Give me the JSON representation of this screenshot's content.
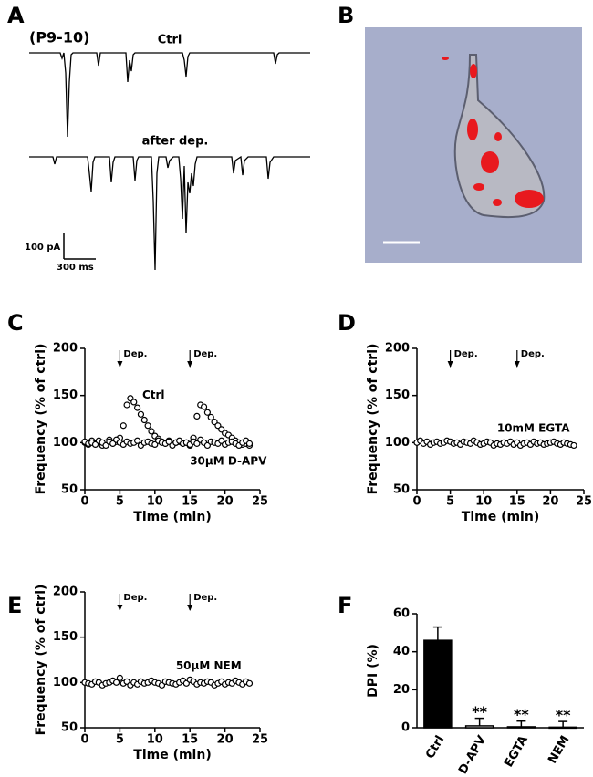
{
  "chart_data": [
    {
      "type": "trace",
      "label": "A",
      "subtitle": "(P9-10)",
      "annotations": [
        "Ctrl",
        "after dep.",
        "100 pA",
        "300 ms"
      ]
    },
    {
      "type": "image",
      "label": "B"
    },
    {
      "type": "scatter",
      "label": "C",
      "xlabel": "Time (min)",
      "ylabel": "Frequency (% of ctrl)",
      "xlim": [
        0,
        25
      ],
      "ylim": [
        50,
        200
      ],
      "xticks": [
        0,
        5,
        10,
        15,
        20,
        25
      ],
      "yticks": [
        50,
        100,
        150,
        200
      ],
      "markers": [
        {
          "label": "Dep.",
          "x": 5
        },
        {
          "label": "Dep.",
          "x": 15
        }
      ],
      "x": [
        0,
        0.5,
        1,
        1.5,
        2,
        2.5,
        3,
        3.5,
        4,
        4.5,
        5,
        5.5,
        6,
        6.5,
        7,
        7.5,
        8,
        8.5,
        9,
        9.5,
        10,
        10.5,
        11,
        11.5,
        12,
        12.5,
        13,
        13.5,
        14,
        14.5,
        15,
        15.5,
        16,
        16.5,
        17,
        17.5,
        18,
        18.5,
        19,
        19.5,
        20,
        20.5,
        21,
        21.5,
        22,
        22.5,
        23,
        23.5
      ],
      "series": [
        {
          "name": "Ctrl",
          "color": "#000000",
          "values": [
            100,
            98,
            102,
            99,
            101,
            97,
            100,
            103,
            99,
            101,
            105,
            118,
            140,
            147,
            143,
            137,
            130,
            124,
            118,
            112,
            107,
            104,
            101,
            99,
            102,
            98,
            100,
            101,
            99,
            100,
            97,
            105,
            128,
            140,
            138,
            132,
            127,
            122,
            118,
            114,
            110,
            108,
            105,
            102,
            100,
            98,
            99,
            97
          ]
        },
        {
          "name": "30μM D-APV",
          "color": "#000000",
          "values": [
            101,
            99,
            100,
            98,
            102,
            100,
            97,
            101,
            99,
            103,
            100,
            98,
            101,
            99,
            100,
            102,
            97,
            100,
            101,
            99,
            98,
            102,
            100,
            99,
            101,
            97,
            100,
            102,
            99,
            100,
            98,
            101,
            99,
            103,
            100,
            97,
            101,
            100,
            99,
            102,
            98,
            100,
            101,
            99,
            97,
            100,
            102,
            99
          ]
        }
      ]
    },
    {
      "type": "scatter",
      "label": "D",
      "xlabel": "Time (min)",
      "ylabel": "Frequency (% of ctrl)",
      "xlim": [
        0,
        25
      ],
      "ylim": [
        50,
        200
      ],
      "xticks": [
        0,
        5,
        10,
        15,
        20,
        25
      ],
      "yticks": [
        50,
        100,
        150,
        200
      ],
      "markers": [
        {
          "label": "Dep.",
          "x": 5
        },
        {
          "label": "Dep.",
          "x": 15
        }
      ],
      "x": [
        0,
        0.5,
        1,
        1.5,
        2,
        2.5,
        3,
        3.5,
        4,
        4.5,
        5,
        5.5,
        6,
        6.5,
        7,
        7.5,
        8,
        8.5,
        9,
        9.5,
        10,
        10.5,
        11,
        11.5,
        12,
        12.5,
        13,
        13.5,
        14,
        14.5,
        15,
        15.5,
        16,
        16.5,
        17,
        17.5,
        18,
        18.5,
        19,
        19.5,
        20,
        20.5,
        21,
        21.5,
        22,
        22.5,
        23,
        23.5
      ],
      "series": [
        {
          "name": "10mM EGTA",
          "color": "#000000",
          "values": [
            100,
            102,
            99,
            101,
            98,
            100,
            101,
            99,
            100,
            102,
            101,
            99,
            100,
            98,
            101,
            100,
            99,
            102,
            100,
            98,
            99,
            101,
            100,
            97,
            99,
            98,
            100,
            99,
            101,
            98,
            100,
            97,
            99,
            100,
            98,
            101,
            99,
            100,
            98,
            99,
            100,
            101,
            99,
            98,
            100,
            99,
            98,
            97
          ]
        }
      ]
    },
    {
      "type": "scatter",
      "label": "E",
      "xlabel": "Time (min)",
      "ylabel": "Frequency (% of ctrl)",
      "xlim": [
        0,
        25
      ],
      "ylim": [
        50,
        200
      ],
      "xticks": [
        0,
        5,
        10,
        15,
        20,
        25
      ],
      "yticks": [
        50,
        100,
        150,
        200
      ],
      "markers": [
        {
          "label": "Dep.",
          "x": 5
        },
        {
          "label": "Dep.",
          "x": 15
        }
      ],
      "x": [
        0,
        0.5,
        1,
        1.5,
        2,
        2.5,
        3,
        3.5,
        4,
        4.5,
        5,
        5.5,
        6,
        6.5,
        7,
        7.5,
        8,
        8.5,
        9,
        9.5,
        10,
        10.5,
        11,
        11.5,
        12,
        12.5,
        13,
        13.5,
        14,
        14.5,
        15,
        15.5,
        16,
        16.5,
        17,
        17.5,
        18,
        18.5,
        19,
        19.5,
        20,
        20.5,
        21,
        21.5,
        22,
        22.5,
        23,
        23.5
      ],
      "series": [
        {
          "name": "50μM NEM",
          "color": "#000000",
          "values": [
            100,
            99,
            98,
            101,
            100,
            97,
            99,
            100,
            102,
            100,
            105,
            99,
            101,
            97,
            100,
            98,
            101,
            99,
            100,
            102,
            100,
            99,
            97,
            101,
            100,
            99,
            98,
            100,
            102,
            99,
            103,
            101,
            98,
            100,
            99,
            101,
            100,
            97,
            99,
            101,
            98,
            100,
            99,
            102,
            100,
            98,
            101,
            99
          ]
        }
      ]
    },
    {
      "type": "bar",
      "label": "F",
      "ylabel": "DPI (%)",
      "ylim": [
        0,
        60
      ],
      "yticks": [
        0,
        20,
        40,
        60
      ],
      "categories": [
        "Ctrl",
        "D-APV",
        "EGTA",
        "NEM"
      ],
      "values": [
        46,
        1,
        0.5,
        0.3
      ],
      "errors": [
        7,
        4,
        3,
        3
      ],
      "colors": [
        "#000000",
        "#ffffff",
        "#ffffff",
        "#ffffff"
      ],
      "significance": [
        null,
        "**",
        "**",
        "**"
      ]
    }
  ]
}
